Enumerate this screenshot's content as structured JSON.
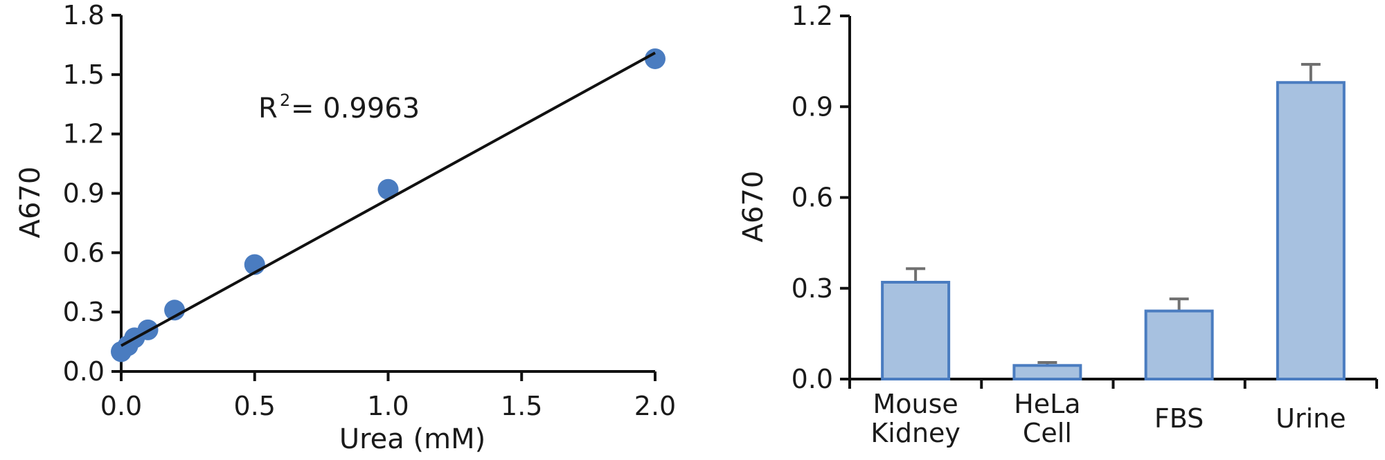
{
  "chart_data": [
    {
      "type": "scatter",
      "title": "",
      "xlabel": "Urea (mM)",
      "ylabel": "A670",
      "xlim": [
        0,
        2.0
      ],
      "ylim": [
        0,
        1.8
      ],
      "x_ticks": [
        "0.0",
        "0.5",
        "1.0",
        "1.5",
        "2.0"
      ],
      "y_ticks": [
        "0.0",
        "0.3",
        "0.6",
        "0.9",
        "1.2",
        "1.5",
        "1.8"
      ],
      "points": [
        {
          "x": 0.0,
          "y": 0.1
        },
        {
          "x": 0.025,
          "y": 0.13
        },
        {
          "x": 0.05,
          "y": 0.17
        },
        {
          "x": 0.1,
          "y": 0.21
        },
        {
          "x": 0.2,
          "y": 0.31
        },
        {
          "x": 0.5,
          "y": 0.54
        },
        {
          "x": 1.0,
          "y": 0.92
        },
        {
          "x": 2.0,
          "y": 1.58
        }
      ],
      "fit_line": {
        "x": [
          0.0,
          2.0
        ],
        "y": [
          0.13,
          1.61
        ]
      },
      "annotation": {
        "base": "R",
        "sup": "2",
        "text": "= 0.9963"
      },
      "grid": false,
      "point_color": "#4a7cc0",
      "line_color": "#111111"
    },
    {
      "type": "bar",
      "title": "",
      "xlabel": "",
      "ylabel": "A670",
      "ylim": [
        0,
        1.2
      ],
      "y_ticks": [
        "0.0",
        "0.3",
        "0.6",
        "0.9",
        "1.2"
      ],
      "categories": [
        [
          "Mouse",
          "Kidney"
        ],
        [
          "HeLa",
          "Cell"
        ],
        [
          "FBS"
        ],
        [
          "Urine"
        ]
      ],
      "values": [
        0.32,
        0.045,
        0.225,
        0.98
      ],
      "errors": [
        0.045,
        0.01,
        0.04,
        0.06
      ],
      "grid": false,
      "bar_fill": "#a7c1e0",
      "bar_stroke": "#4a7cc0",
      "error_color": "#707070"
    }
  ]
}
